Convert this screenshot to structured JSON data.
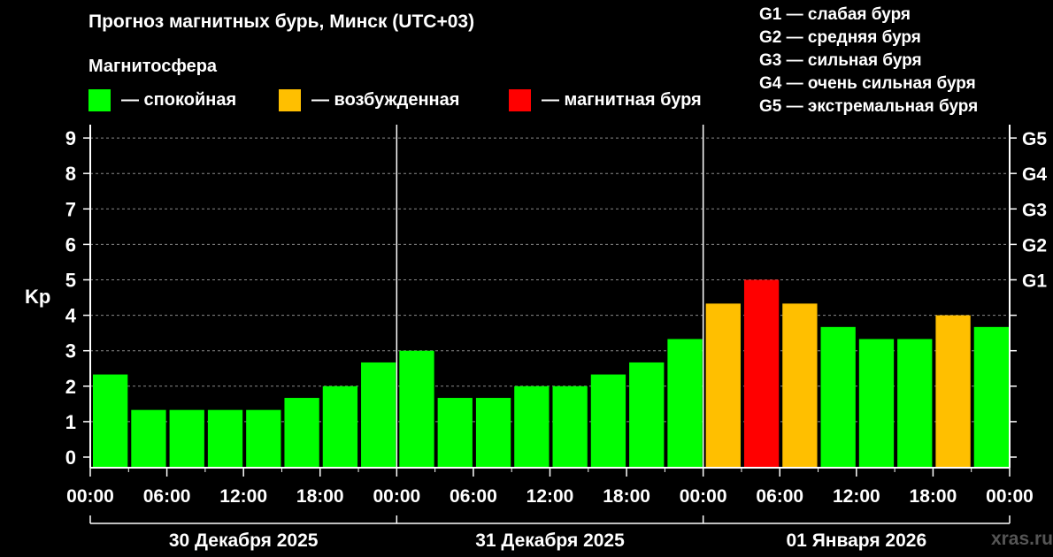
{
  "header": {
    "title": "Прогноз магнитных бурь, Минск (UTC+03)",
    "magnetosphere_title": "Магнитосфера"
  },
  "legend": [
    {
      "label": "— спокойная",
      "color": "#00ff00"
    },
    {
      "label": "— возбужденная",
      "color": "#ffbf00"
    },
    {
      "label": "— магнитная буря",
      "color": "#ff0000"
    }
  ],
  "g_legend": [
    "G1 — слабая буря",
    "G2 — средняя буря",
    "G3 — сильная буря",
    "G4 — очень сильная буря",
    "G5 — экстремальная буря"
  ],
  "watermark": "xras.ru",
  "chart_data": {
    "type": "bar",
    "ylabel": "Kp",
    "ylim": [
      0,
      9
    ],
    "yticks": [
      "0",
      "1",
      "2",
      "3",
      "4",
      "5",
      "6",
      "7",
      "8",
      "9"
    ],
    "right_ticks": [
      {
        "value": 5,
        "label": "G1"
      },
      {
        "value": 6,
        "label": "G2"
      },
      {
        "value": 7,
        "label": "G3"
      },
      {
        "value": 8,
        "label": "G4"
      },
      {
        "value": 9,
        "label": "G5"
      }
    ],
    "xticks": [
      "00:00",
      "06:00",
      "12:00",
      "18:00",
      "00:00",
      "06:00",
      "12:00",
      "18:00",
      "00:00",
      "06:00",
      "12:00",
      "18:00",
      "00:00"
    ],
    "days": [
      "30 Декабря 2025",
      "31 Декабря 2025",
      "01 Января 2026"
    ],
    "grid": true,
    "bars": [
      {
        "kp": 2.33,
        "color": "#00ff00"
      },
      {
        "kp": 1.33,
        "color": "#00ff00"
      },
      {
        "kp": 1.33,
        "color": "#00ff00"
      },
      {
        "kp": 1.33,
        "color": "#00ff00"
      },
      {
        "kp": 1.33,
        "color": "#00ff00"
      },
      {
        "kp": 1.67,
        "color": "#00ff00"
      },
      {
        "kp": 2.0,
        "color": "#00ff00"
      },
      {
        "kp": 2.67,
        "color": "#00ff00"
      },
      {
        "kp": 3.0,
        "color": "#00ff00"
      },
      {
        "kp": 1.67,
        "color": "#00ff00"
      },
      {
        "kp": 1.67,
        "color": "#00ff00"
      },
      {
        "kp": 2.0,
        "color": "#00ff00"
      },
      {
        "kp": 2.0,
        "color": "#00ff00"
      },
      {
        "kp": 2.33,
        "color": "#00ff00"
      },
      {
        "kp": 2.67,
        "color": "#00ff00"
      },
      {
        "kp": 3.33,
        "color": "#00ff00"
      },
      {
        "kp": 4.33,
        "color": "#ffbf00"
      },
      {
        "kp": 5.0,
        "color": "#ff0000"
      },
      {
        "kp": 4.33,
        "color": "#ffbf00"
      },
      {
        "kp": 3.67,
        "color": "#00ff00"
      },
      {
        "kp": 3.33,
        "color": "#00ff00"
      },
      {
        "kp": 3.33,
        "color": "#00ff00"
      },
      {
        "kp": 4.0,
        "color": "#ffbf00"
      },
      {
        "kp": 3.67,
        "color": "#00ff00"
      }
    ]
  }
}
